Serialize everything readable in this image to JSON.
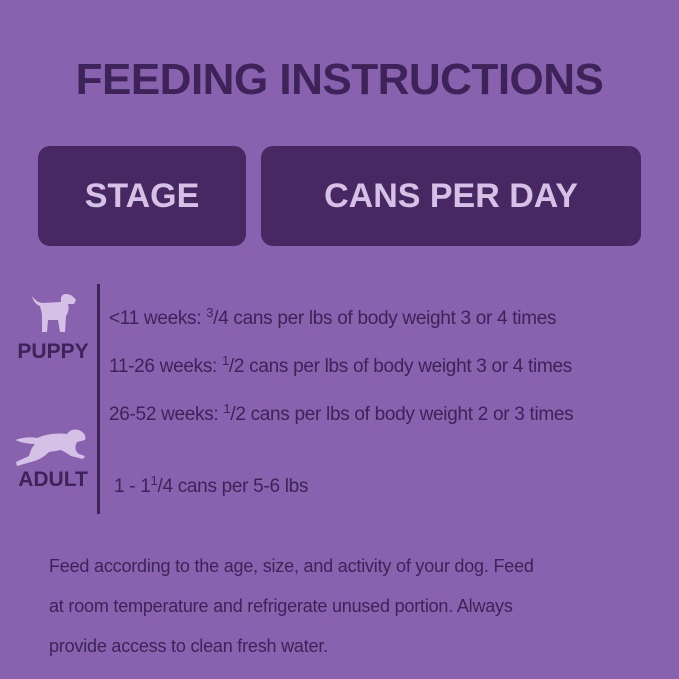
{
  "title": "FEEDING INSTRUCTIONS",
  "header": {
    "stage": "STAGE",
    "cans_per_day": "CANS PER DAY"
  },
  "colors": {
    "background": "#8862ae",
    "text": "#3d2358",
    "box": "#472863",
    "box_text": "#d6c1e6",
    "dog_icon": "#d6c1e6"
  },
  "stages": [
    {
      "label": "PUPPY",
      "icon": "puppy-icon"
    },
    {
      "label": "ADULT",
      "icon": "running-dog-icon"
    }
  ],
  "rows": [
    {
      "prefix": "<11 weeks: ",
      "num": "3",
      "den": "4",
      "suffix": " cans per lbs of body weight 3 or 4 times"
    },
    {
      "prefix": "11-26 weeks: ",
      "num": "1",
      "den": "2",
      "suffix": " cans per lbs of body weight 3 or 4 times"
    },
    {
      "prefix": "26-52 weeks: ",
      "num": "1",
      "den": "2",
      "suffix": " cans per lbs of body weight 2 or 3 times"
    },
    {
      "prefix": "1 - 1",
      "num": "1",
      "den": "4",
      "suffix": " cans per 5-6 lbs"
    }
  ],
  "footer": [
    "Feed according to the age, size, and activity of your dog. Feed",
    "at room temperature and refrigerate unused portion. Always",
    "provide access to clean fresh water."
  ]
}
